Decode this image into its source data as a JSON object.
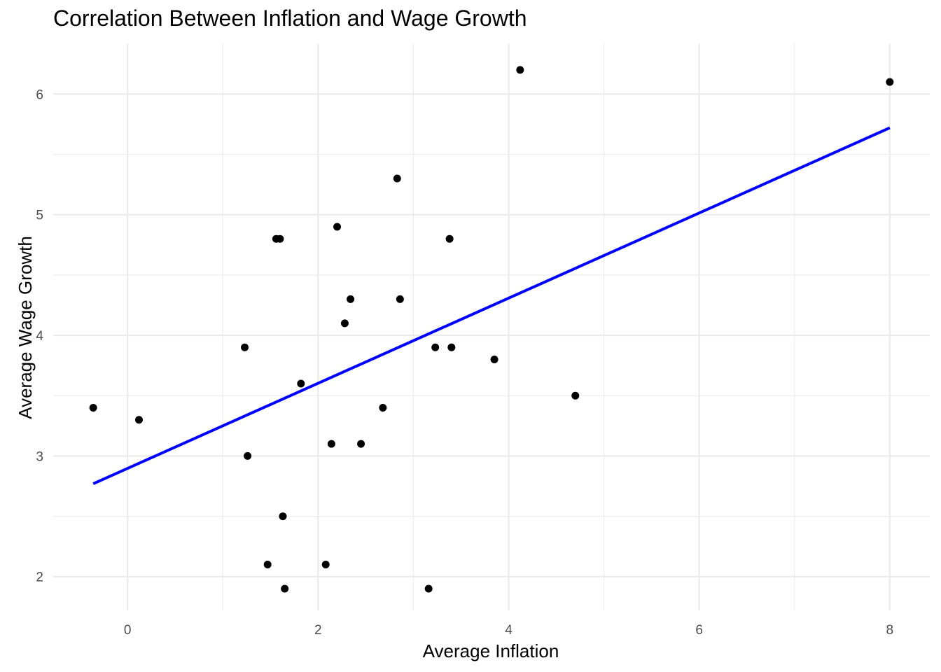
{
  "chart_data": {
    "type": "scatter",
    "title": "Correlation Between Inflation and Wage Growth",
    "xlabel": "Average Inflation",
    "ylabel": "Average Wage Growth",
    "xlim": [
      -0.78,
      8.42
    ],
    "ylim": [
      1.72,
      6.42
    ],
    "x_ticks": [
      0,
      2,
      4,
      6,
      8
    ],
    "y_ticks": [
      2,
      3,
      4,
      5,
      6
    ],
    "x_tick_labels": [
      "0",
      "2",
      "4",
      "6",
      "8"
    ],
    "y_tick_labels": [
      "2",
      "3",
      "4",
      "5",
      "6"
    ],
    "grid": true,
    "point_color": "#000000",
    "trend_color": "#0000ff",
    "grid_color": "#ebebeb",
    "points": [
      {
        "x": -0.36,
        "y": 3.4
      },
      {
        "x": 0.12,
        "y": 3.3
      },
      {
        "x": 1.23,
        "y": 3.9
      },
      {
        "x": 1.26,
        "y": 3.0
      },
      {
        "x": 1.47,
        "y": 2.1
      },
      {
        "x": 1.56,
        "y": 4.8
      },
      {
        "x": 1.6,
        "y": 4.8
      },
      {
        "x": 1.63,
        "y": 2.5
      },
      {
        "x": 1.65,
        "y": 1.9
      },
      {
        "x": 1.82,
        "y": 3.6
      },
      {
        "x": 2.08,
        "y": 2.1
      },
      {
        "x": 2.14,
        "y": 3.1
      },
      {
        "x": 2.2,
        "y": 4.9
      },
      {
        "x": 2.28,
        "y": 4.1
      },
      {
        "x": 2.34,
        "y": 4.3
      },
      {
        "x": 2.45,
        "y": 3.1
      },
      {
        "x": 2.68,
        "y": 3.4
      },
      {
        "x": 2.83,
        "y": 5.3
      },
      {
        "x": 2.86,
        "y": 4.3
      },
      {
        "x": 3.16,
        "y": 1.9
      },
      {
        "x": 3.23,
        "y": 3.9
      },
      {
        "x": 3.38,
        "y": 4.8
      },
      {
        "x": 3.4,
        "y": 3.9
      },
      {
        "x": 3.85,
        "y": 3.8
      },
      {
        "x": 4.12,
        "y": 6.2
      },
      {
        "x": 4.7,
        "y": 3.5
      },
      {
        "x": 8.0,
        "y": 6.1
      }
    ],
    "trend_line": {
      "x": [
        -0.36,
        8.0
      ],
      "y": [
        2.77,
        5.72
      ]
    }
  }
}
